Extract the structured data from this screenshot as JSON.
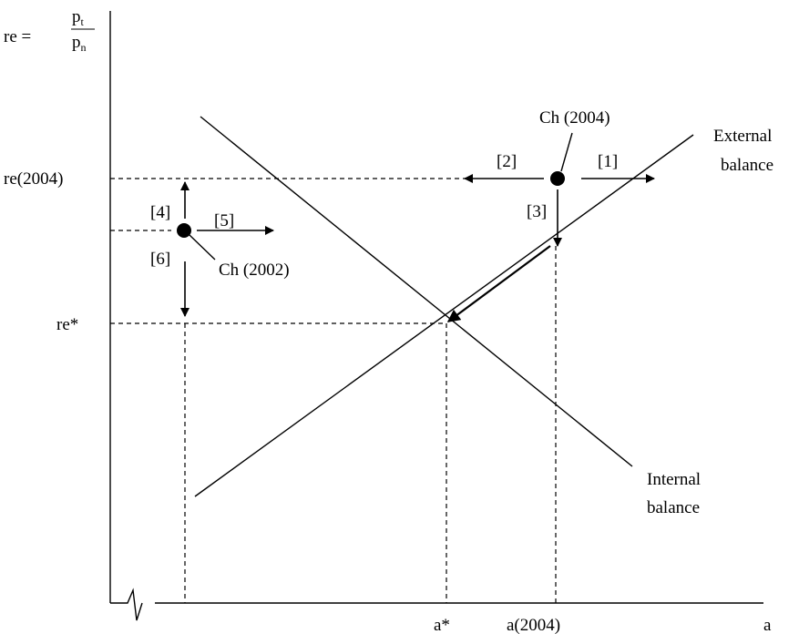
{
  "y_axis": {
    "label_lhs": "re =",
    "num_base": "p",
    "num_sub": "t",
    "den_base": "p",
    "den_sub": "n",
    "ticks": {
      "re2004": "re(2004)",
      "re_star": "re*"
    }
  },
  "x_axis": {
    "label": "a",
    "ticks": {
      "a_star": "a*",
      "a2004": "a(2004)"
    }
  },
  "curves": {
    "external_line1": "External",
    "external_line2": "balance",
    "internal_line1": "Internal",
    "internal_line2": "balance"
  },
  "points": {
    "ch2004": "Ch (2004)",
    "ch2002": "Ch (2002)"
  },
  "arrows": {
    "a1": "[1]",
    "a2": "[2]",
    "a3": "[3]",
    "a4": "[4]",
    "a5": "[5]",
    "a6": "[6]"
  }
}
